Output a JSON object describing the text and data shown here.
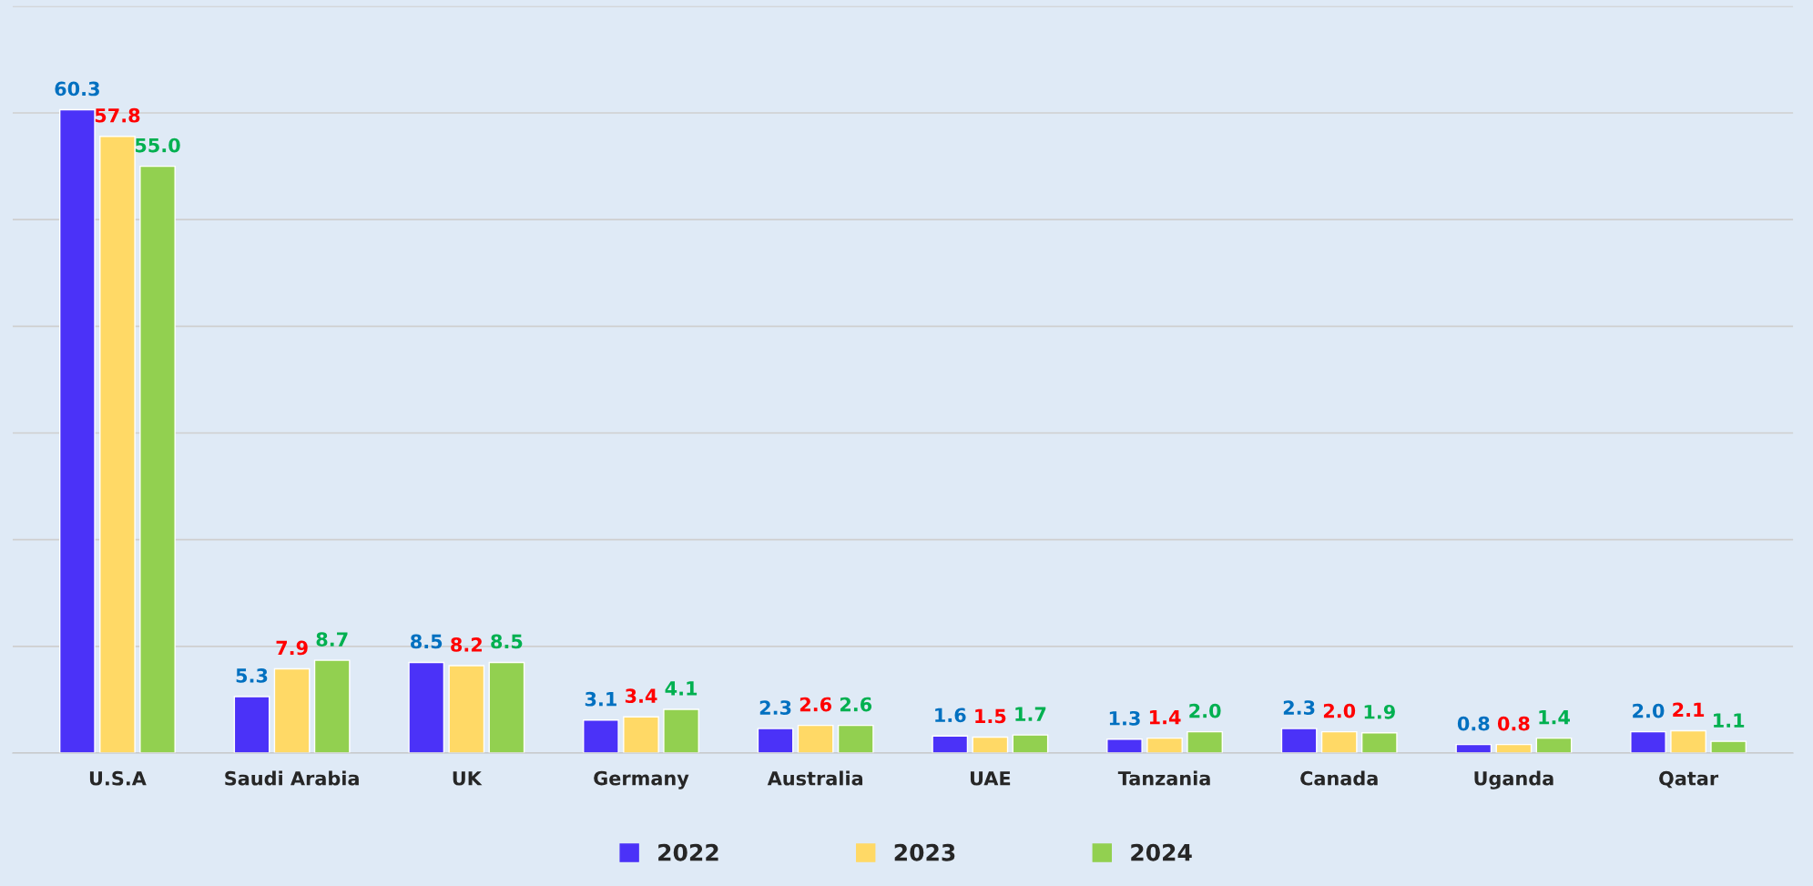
{
  "chart_data": {
    "type": "bar",
    "categories": [
      "U.S.A",
      "Saudi Arabia",
      "UK",
      "Germany",
      "Australia",
      "UAE",
      "Tanzania",
      "Canada",
      "Uganda",
      "Qatar"
    ],
    "series": [
      {
        "name": "2022",
        "color": "#4b32f8",
        "values": [
          60.3,
          5.3,
          8.5,
          3.1,
          2.3,
          1.6,
          1.3,
          2.3,
          0.8,
          2.0
        ],
        "value_labels": [
          "60.3",
          "5.3",
          "8.5",
          "3.1",
          "2.3",
          "1.6",
          "1.3",
          "2.3",
          "0.8",
          "2.0"
        ]
      },
      {
        "name": "2023",
        "color": "#ffd966",
        "values": [
          57.8,
          7.9,
          8.2,
          3.4,
          2.6,
          1.5,
          1.4,
          2.0,
          0.8,
          2.1
        ],
        "value_labels": [
          "57.8",
          "7.9",
          "8.2",
          "3.4",
          "2.6",
          "1.5",
          "1.4",
          "2.0",
          "0.8",
          "2.1"
        ]
      },
      {
        "name": "2024",
        "color": "#92d050",
        "values": [
          55.0,
          8.7,
          8.5,
          4.1,
          2.6,
          1.7,
          2.0,
          1.9,
          1.4,
          1.1
        ],
        "value_labels": [
          "55.0",
          "8.7",
          "8.5",
          "4.1",
          "2.6",
          "1.7",
          "2.0",
          "1.9",
          "1.4",
          "1.1"
        ]
      }
    ],
    "ylim": [
      0,
      70
    ],
    "yticks": [
      {
        "value": 0,
        "label": null
      },
      {
        "value": 10,
        "label": null
      },
      {
        "value": 20,
        "label": null
      },
      {
        "value": 30,
        "label": null
      },
      {
        "value": 40,
        "label": null
      },
      {
        "value": 50,
        "label": null
      },
      {
        "value": 60,
        "label": null
      },
      {
        "value": 70,
        "label": null
      }
    ],
    "tick_labels": "x",
    "grid": "y",
    "legend": "bottom"
  }
}
